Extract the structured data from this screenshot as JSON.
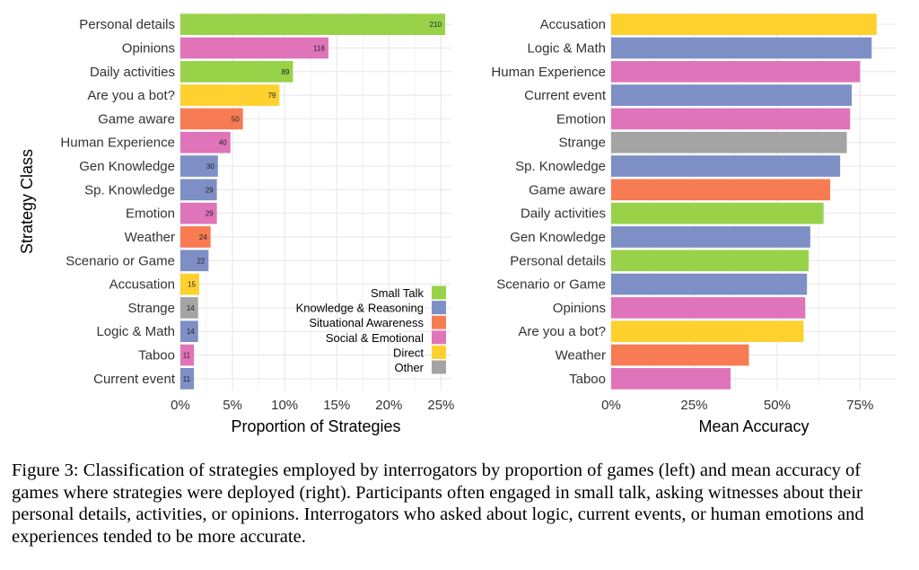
{
  "chart_data": [
    {
      "type": "bar",
      "orientation": "horizontal",
      "xlabel": "Proportion of Strategies",
      "ylabel": "Strategy Class",
      "xlim": [
        0,
        0.26
      ],
      "xticks": [
        0,
        0.05,
        0.1,
        0.15,
        0.2,
        0.25
      ],
      "xtick_labels": [
        "0%",
        "5%",
        "10%",
        "15%",
        "20%",
        "25%"
      ],
      "grid": true,
      "legend_position": "bottom-right",
      "bars": [
        {
          "label": "Personal details",
          "value": 0.254,
          "count": "210",
          "group": "Small Talk"
        },
        {
          "label": "Opinions",
          "value": 0.142,
          "count": "118",
          "group": "Social & Emotional"
        },
        {
          "label": "Daily activities",
          "value": 0.108,
          "count": "89",
          "group": "Small Talk"
        },
        {
          "label": "Are you a bot?",
          "value": 0.095,
          "count": "79",
          "group": "Direct"
        },
        {
          "label": "Game aware",
          "value": 0.06,
          "count": "50",
          "group": "Situational Awareness"
        },
        {
          "label": "Human Experience",
          "value": 0.048,
          "count": "40",
          "group": "Social & Emotional"
        },
        {
          "label": "Gen Knowledge",
          "value": 0.036,
          "count": "30",
          "group": "Knowledge & Reasoning"
        },
        {
          "label": "Sp. Knowledge",
          "value": 0.035,
          "count": "29",
          "group": "Knowledge & Reasoning"
        },
        {
          "label": "Emotion",
          "value": 0.035,
          "count": "29",
          "group": "Social & Emotional"
        },
        {
          "label": "Weather",
          "value": 0.029,
          "count": "24",
          "group": "Situational Awareness"
        },
        {
          "label": "Scenario or Game",
          "value": 0.027,
          "count": "22",
          "group": "Knowledge & Reasoning"
        },
        {
          "label": "Accusation",
          "value": 0.018,
          "count": "15",
          "group": "Direct"
        },
        {
          "label": "Strange",
          "value": 0.017,
          "count": "14",
          "group": "Other"
        },
        {
          "label": "Logic & Math",
          "value": 0.017,
          "count": "14",
          "group": "Knowledge & Reasoning"
        },
        {
          "label": "Taboo",
          "value": 0.013,
          "count": "11",
          "group": "Social & Emotional"
        },
        {
          "label": "Current event",
          "value": 0.013,
          "count": "11",
          "group": "Knowledge & Reasoning"
        }
      ]
    },
    {
      "type": "bar",
      "orientation": "horizontal",
      "xlabel": "Mean Accuracy",
      "xlim": [
        0,
        0.86
      ],
      "xticks": [
        0,
        0.25,
        0.5,
        0.75
      ],
      "xtick_labels": [
        "0%",
        "25%",
        "50%",
        "75%"
      ],
      "grid": true,
      "bars": [
        {
          "label": "Accusation",
          "value": 0.8,
          "group": "Direct"
        },
        {
          "label": "Logic & Math",
          "value": 0.785,
          "group": "Knowledge & Reasoning"
        },
        {
          "label": "Human Experience",
          "value": 0.75,
          "group": "Social & Emotional"
        },
        {
          "label": "Current event",
          "value": 0.725,
          "group": "Knowledge & Reasoning"
        },
        {
          "label": "Emotion",
          "value": 0.72,
          "group": "Social & Emotional"
        },
        {
          "label": "Strange",
          "value": 0.71,
          "group": "Other"
        },
        {
          "label": "Sp. Knowledge",
          "value": 0.69,
          "group": "Knowledge & Reasoning"
        },
        {
          "label": "Game aware",
          "value": 0.66,
          "group": "Situational Awareness"
        },
        {
          "label": "Daily activities",
          "value": 0.64,
          "group": "Small Talk"
        },
        {
          "label": "Gen Knowledge",
          "value": 0.6,
          "group": "Knowledge & Reasoning"
        },
        {
          "label": "Personal details",
          "value": 0.595,
          "group": "Small Talk"
        },
        {
          "label": "Scenario or Game",
          "value": 0.59,
          "group": "Knowledge & Reasoning"
        },
        {
          "label": "Opinions",
          "value": 0.585,
          "group": "Social & Emotional"
        },
        {
          "label": "Are you a bot?",
          "value": 0.58,
          "group": "Direct"
        },
        {
          "label": "Weather",
          "value": 0.415,
          "group": "Situational Awareness"
        },
        {
          "label": "Taboo",
          "value": 0.36,
          "group": "Social & Emotional"
        }
      ]
    }
  ],
  "legend": [
    {
      "name": "Small Talk",
      "color": "#97d249"
    },
    {
      "name": "Knowledge & Reasoning",
      "color": "#7d8fc5"
    },
    {
      "name": "Situational Awareness",
      "color": "#f77b53"
    },
    {
      "name": "Social & Emotional",
      "color": "#e074bb"
    },
    {
      "name": "Direct",
      "color": "#fed12e"
    },
    {
      "name": "Other",
      "color": "#a4a4a4"
    }
  ],
  "caption": "Figure 3: Classification of strategies employed by interrogators by proportion of games (left) and mean accuracy of games where strategies were deployed (right). Participants often engaged in small talk, asking witnesses about their personal details, activities, or opinions. Interrogators who asked about logic, current events, or human emotions and experiences tended to be more accurate."
}
